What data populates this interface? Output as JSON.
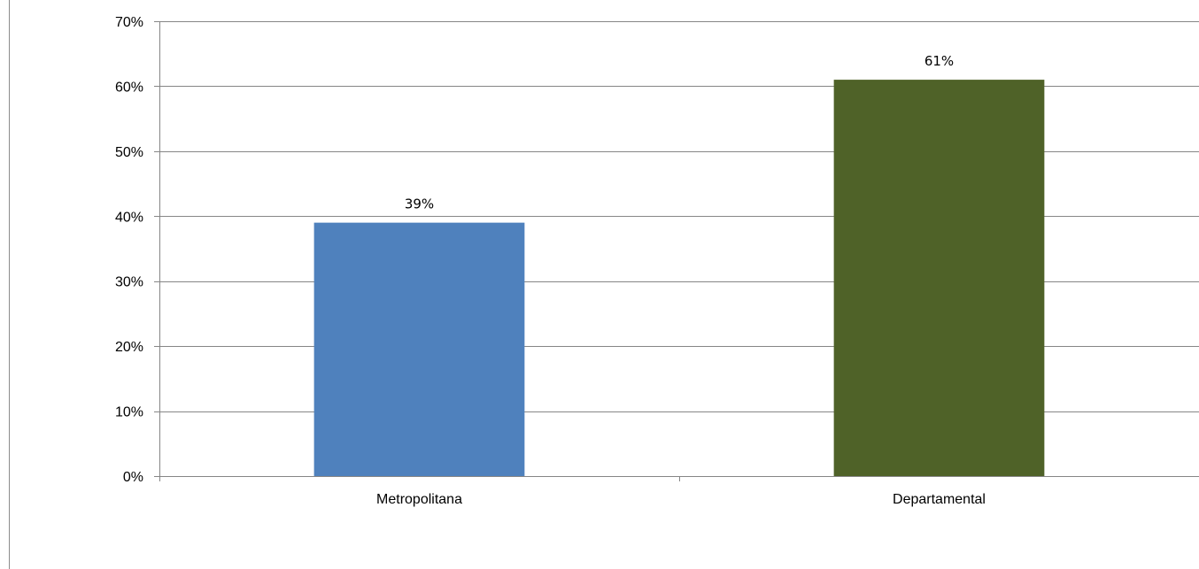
{
  "chart_data": {
    "type": "bar",
    "categories": [
      "Metropolitana",
      "Departamental"
    ],
    "values": [
      0.39,
      0.61
    ],
    "data_labels": [
      "39%",
      "61%"
    ],
    "bar_colors": [
      "#4f81bd",
      "#4f6228"
    ],
    "ylim": [
      0,
      0.7
    ],
    "y_ticks": [
      0,
      0.1,
      0.2,
      0.3,
      0.4,
      0.5,
      0.6,
      0.7
    ],
    "y_tick_labels": [
      "0%",
      "10%",
      "20%",
      "30%",
      "40%",
      "50%",
      "60%",
      "70%"
    ],
    "grid": true,
    "legend": "none",
    "title": "",
    "xlabel": "",
    "ylabel": ""
  }
}
